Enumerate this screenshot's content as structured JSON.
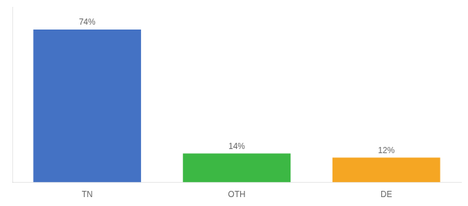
{
  "chart_data": {
    "type": "bar",
    "categories": [
      "TN",
      "OTH",
      "DE"
    ],
    "values": [
      74,
      14,
      12
    ],
    "value_labels": [
      "74%",
      "14%",
      "12%"
    ],
    "colors": [
      "#4472c4",
      "#3cb844",
      "#f5a623"
    ],
    "ylim": [
      0,
      85
    ],
    "data_labels": true,
    "tick_labels": "x",
    "grid": false
  }
}
